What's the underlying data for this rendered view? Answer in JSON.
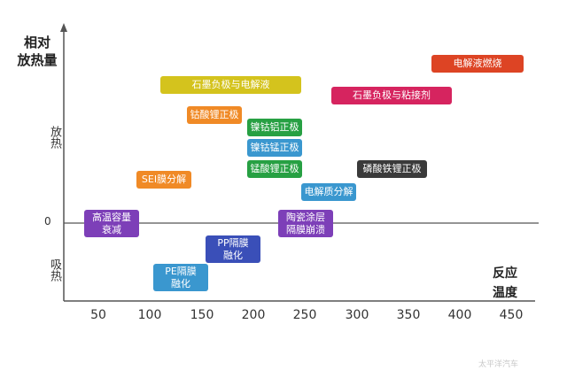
{
  "y_axis": {
    "title_line1": "相对",
    "title_line2": "放热量",
    "exo_label": "放热",
    "endo_label": "吸热",
    "zero_label": "0"
  },
  "x_axis": {
    "title_line1": "反应",
    "title_line2": "温度",
    "ticks": [
      "50",
      "100",
      "150",
      "200",
      "250",
      "300",
      "350",
      "400",
      "450"
    ]
  },
  "events": [
    {
      "id": "high-temp-capacity",
      "line1": "高温容量",
      "line2": "衰减",
      "color": "#7d3fb8"
    },
    {
      "id": "sei-decomposition",
      "line1": "SEI膜分解",
      "color": "#f08a26"
    },
    {
      "id": "graphite-electrolyte",
      "line1": "石墨负极与电解液",
      "color": "#d4c31d"
    },
    {
      "id": "lco-cathode",
      "line1": "钴酸锂正极",
      "color": "#f08a26"
    },
    {
      "id": "nca-cathode",
      "line1": "镍钴铝正极",
      "color": "#27a043"
    },
    {
      "id": "ncm-cathode",
      "line1": "镍钴锰正极",
      "color": "#3a97cf"
    },
    {
      "id": "lmo-cathode",
      "line1": "锰酸锂正极",
      "color": "#27a043"
    },
    {
      "id": "pp-separator",
      "line1": "PP隔膜",
      "line2": "融化",
      "color": "#3a4fb8"
    },
    {
      "id": "pe-separator",
      "line1": "PE隔膜",
      "line2": "融化",
      "color": "#3a97cf"
    },
    {
      "id": "ceramic-separator",
      "line1": "陶瓷涂层",
      "line2": "隔膜崩溃",
      "color": "#7d3fb8"
    },
    {
      "id": "electrolyte-decomposition",
      "line1": "电解质分解",
      "color": "#3a97cf"
    },
    {
      "id": "graphite-binder",
      "line1": "石墨负极与粘接剂",
      "color": "#d6245f"
    },
    {
      "id": "lfp-cathode",
      "line1": "磷酸铁锂正极",
      "color": "#3a3a3a"
    },
    {
      "id": "electrolyte-combustion",
      "line1": "电解液燃烧",
      "color": "#dd4424"
    }
  ],
  "watermark": "太平洋汽车"
}
